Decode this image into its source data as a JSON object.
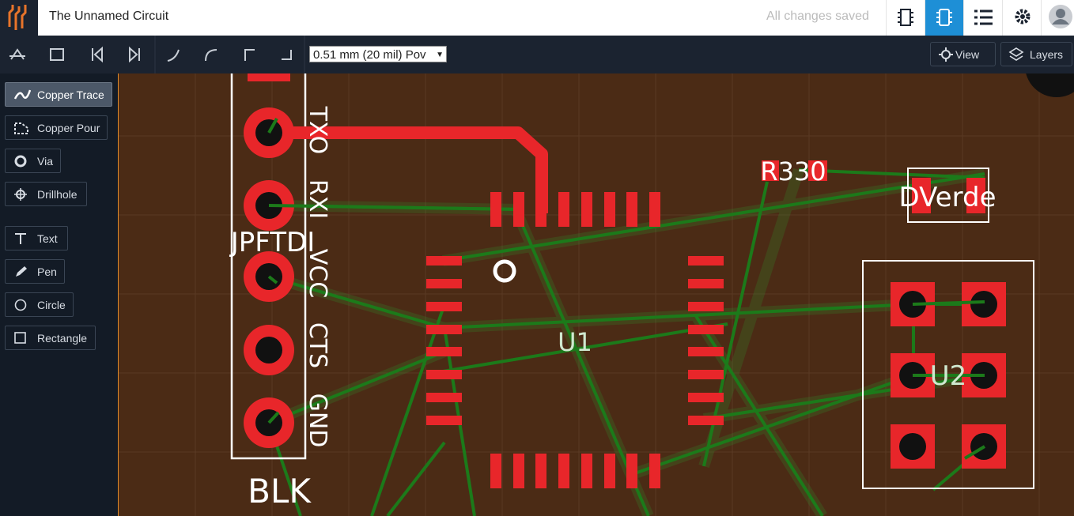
{
  "header": {
    "title": "The Unnamed Circuit",
    "status": "All changes saved"
  },
  "toolbar": {
    "trace_width": "0.51 mm (20 mil) Pov",
    "view": "View",
    "layers": "Layers"
  },
  "tools": [
    "Copper Trace",
    "Copper Pour",
    "Via",
    "Drillhole",
    "Text",
    "Pen",
    "Circle",
    "Rectangle"
  ],
  "board": {
    "pin_labels": [
      "TXO",
      "RXI",
      "VCC",
      "CTS",
      "GND"
    ],
    "connector": "JPFTDI",
    "connector_note": "BLK",
    "resistor": "R330",
    "led": "DVerde",
    "u1": "U1",
    "u2": "U2"
  }
}
